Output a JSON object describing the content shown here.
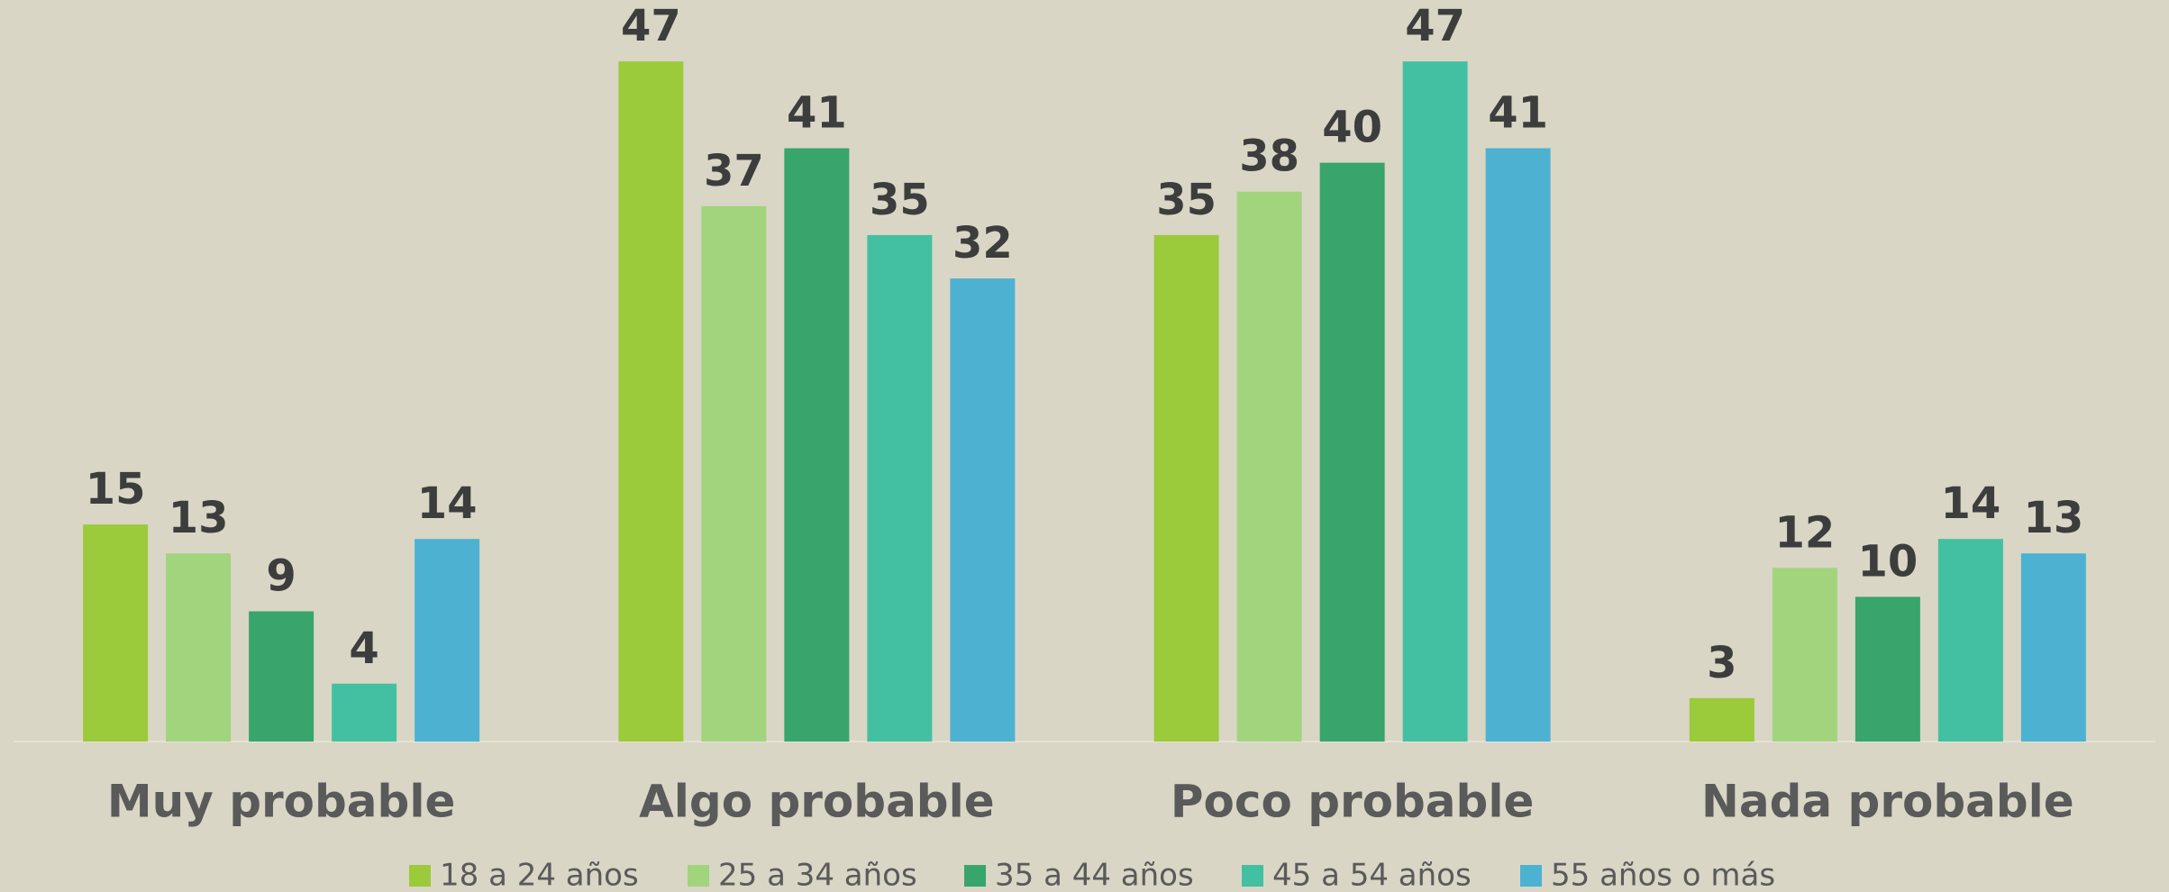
{
  "chart_data": {
    "type": "bar",
    "categories": [
      "Muy probable",
      "Algo probable",
      "Poco probable",
      "Nada probable"
    ],
    "series": [
      {
        "name": "18 a 24 años",
        "color": "#9bca3b",
        "values": [
          15,
          47,
          35,
          3
        ]
      },
      {
        "name": "25 a 34 años",
        "color": "#a2d47e",
        "values": [
          13,
          37,
          38,
          12
        ]
      },
      {
        "name": "35 a 44 años",
        "color": "#37a56c",
        "values": [
          9,
          41,
          40,
          10
        ]
      },
      {
        "name": "45 a 54 años",
        "color": "#43c0a2",
        "values": [
          4,
          35,
          47,
          14
        ]
      },
      {
        "name": "55 años o más",
        "color": "#4db2d2",
        "values": [
          14,
          32,
          41,
          13
        ]
      }
    ],
    "ylim": [
      0,
      50
    ],
    "legend": "bottom"
  }
}
